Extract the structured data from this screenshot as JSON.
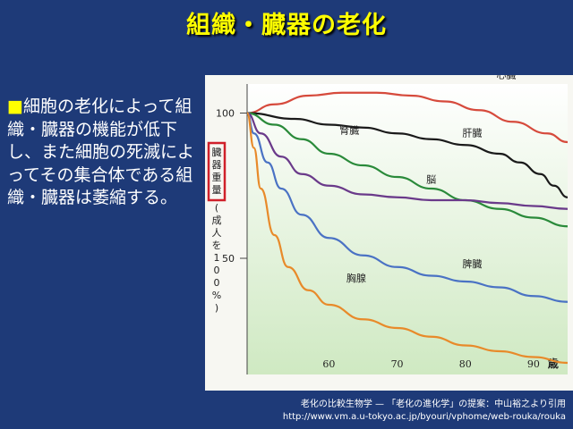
{
  "slide": {
    "title": "組織・臓器の老化",
    "bullet": "■",
    "body": "細胞の老化によって組織・臓器の機能が低下し、また細胞の死滅によってその集合体である組織・臓器は萎縮する。",
    "credit_line1": "老化の比較生物学 — 「老化の進化学」の提案：中山裕之より引用",
    "credit_line2": "http://www.vm.a.u-tokyo.ac.jp/byouri/vphome/web-rouka/rouka"
  },
  "colors": {
    "background": "#1e3a78",
    "title": "#ffff00",
    "plot_bg": "#dff0d2",
    "highlight_box": "#d0202a"
  },
  "chart_data": {
    "type": "line",
    "x_unit": "歳",
    "x_ticks": [
      60,
      70,
      80,
      90
    ],
    "xlim": [
      48,
      95
    ],
    "y_ticks": [
      50,
      100
    ],
    "ylim": [
      10,
      110
    ],
    "ylabel_boxed": "臓器重量",
    "ylabel_rest": "(成人を100%)",
    "series": [
      {
        "name": "心臓",
        "color": "#d64a3c",
        "x": [
          48,
          52,
          57,
          62,
          67,
          72,
          77,
          82,
          87,
          92,
          95
        ],
        "y": [
          100,
          103,
          106,
          107,
          107,
          106,
          104,
          101,
          97,
          93,
          90
        ]
      },
      {
        "name": "肝臓",
        "color": "#1a1a1a",
        "x": [
          48,
          55,
          60,
          65,
          70,
          75,
          80,
          85,
          88,
          91,
          93,
          95
        ],
        "y": [
          100,
          98,
          96,
          95,
          93,
          91,
          89,
          86,
          83,
          79,
          75,
          71
        ]
      },
      {
        "name": "腎臓",
        "color": "#2a8a3a",
        "x": [
          48,
          52,
          56,
          60,
          65,
          70,
          75,
          80,
          85,
          90,
          95
        ],
        "y": [
          100,
          96,
          91,
          86,
          82,
          78,
          74,
          70,
          67,
          64,
          61
        ]
      },
      {
        "name": "脳",
        "color": "#6a3a8a",
        "x": [
          48,
          50,
          53,
          56,
          60,
          65,
          70,
          75,
          80,
          85,
          90,
          95
        ],
        "y": [
          100,
          93,
          85,
          79,
          75,
          72,
          71,
          70,
          70,
          69,
          68,
          67
        ]
      },
      {
        "name": "脾臓",
        "color": "#4a72c4",
        "x": [
          48,
          49,
          51,
          53,
          56,
          60,
          65,
          70,
          75,
          80,
          85,
          90,
          95
        ],
        "y": [
          100,
          93,
          83,
          74,
          65,
          57,
          51,
          47,
          44,
          42,
          40,
          37,
          35
        ]
      },
      {
        "name": "胸腺",
        "color": "#e88a2a",
        "x": [
          48,
          49,
          50,
          52,
          54,
          57,
          60,
          65,
          70,
          75,
          80,
          85,
          90,
          95
        ],
        "y": [
          100,
          88,
          74,
          58,
          47,
          39,
          34,
          29,
          26,
          23,
          20,
          18,
          16,
          14
        ]
      }
    ]
  }
}
